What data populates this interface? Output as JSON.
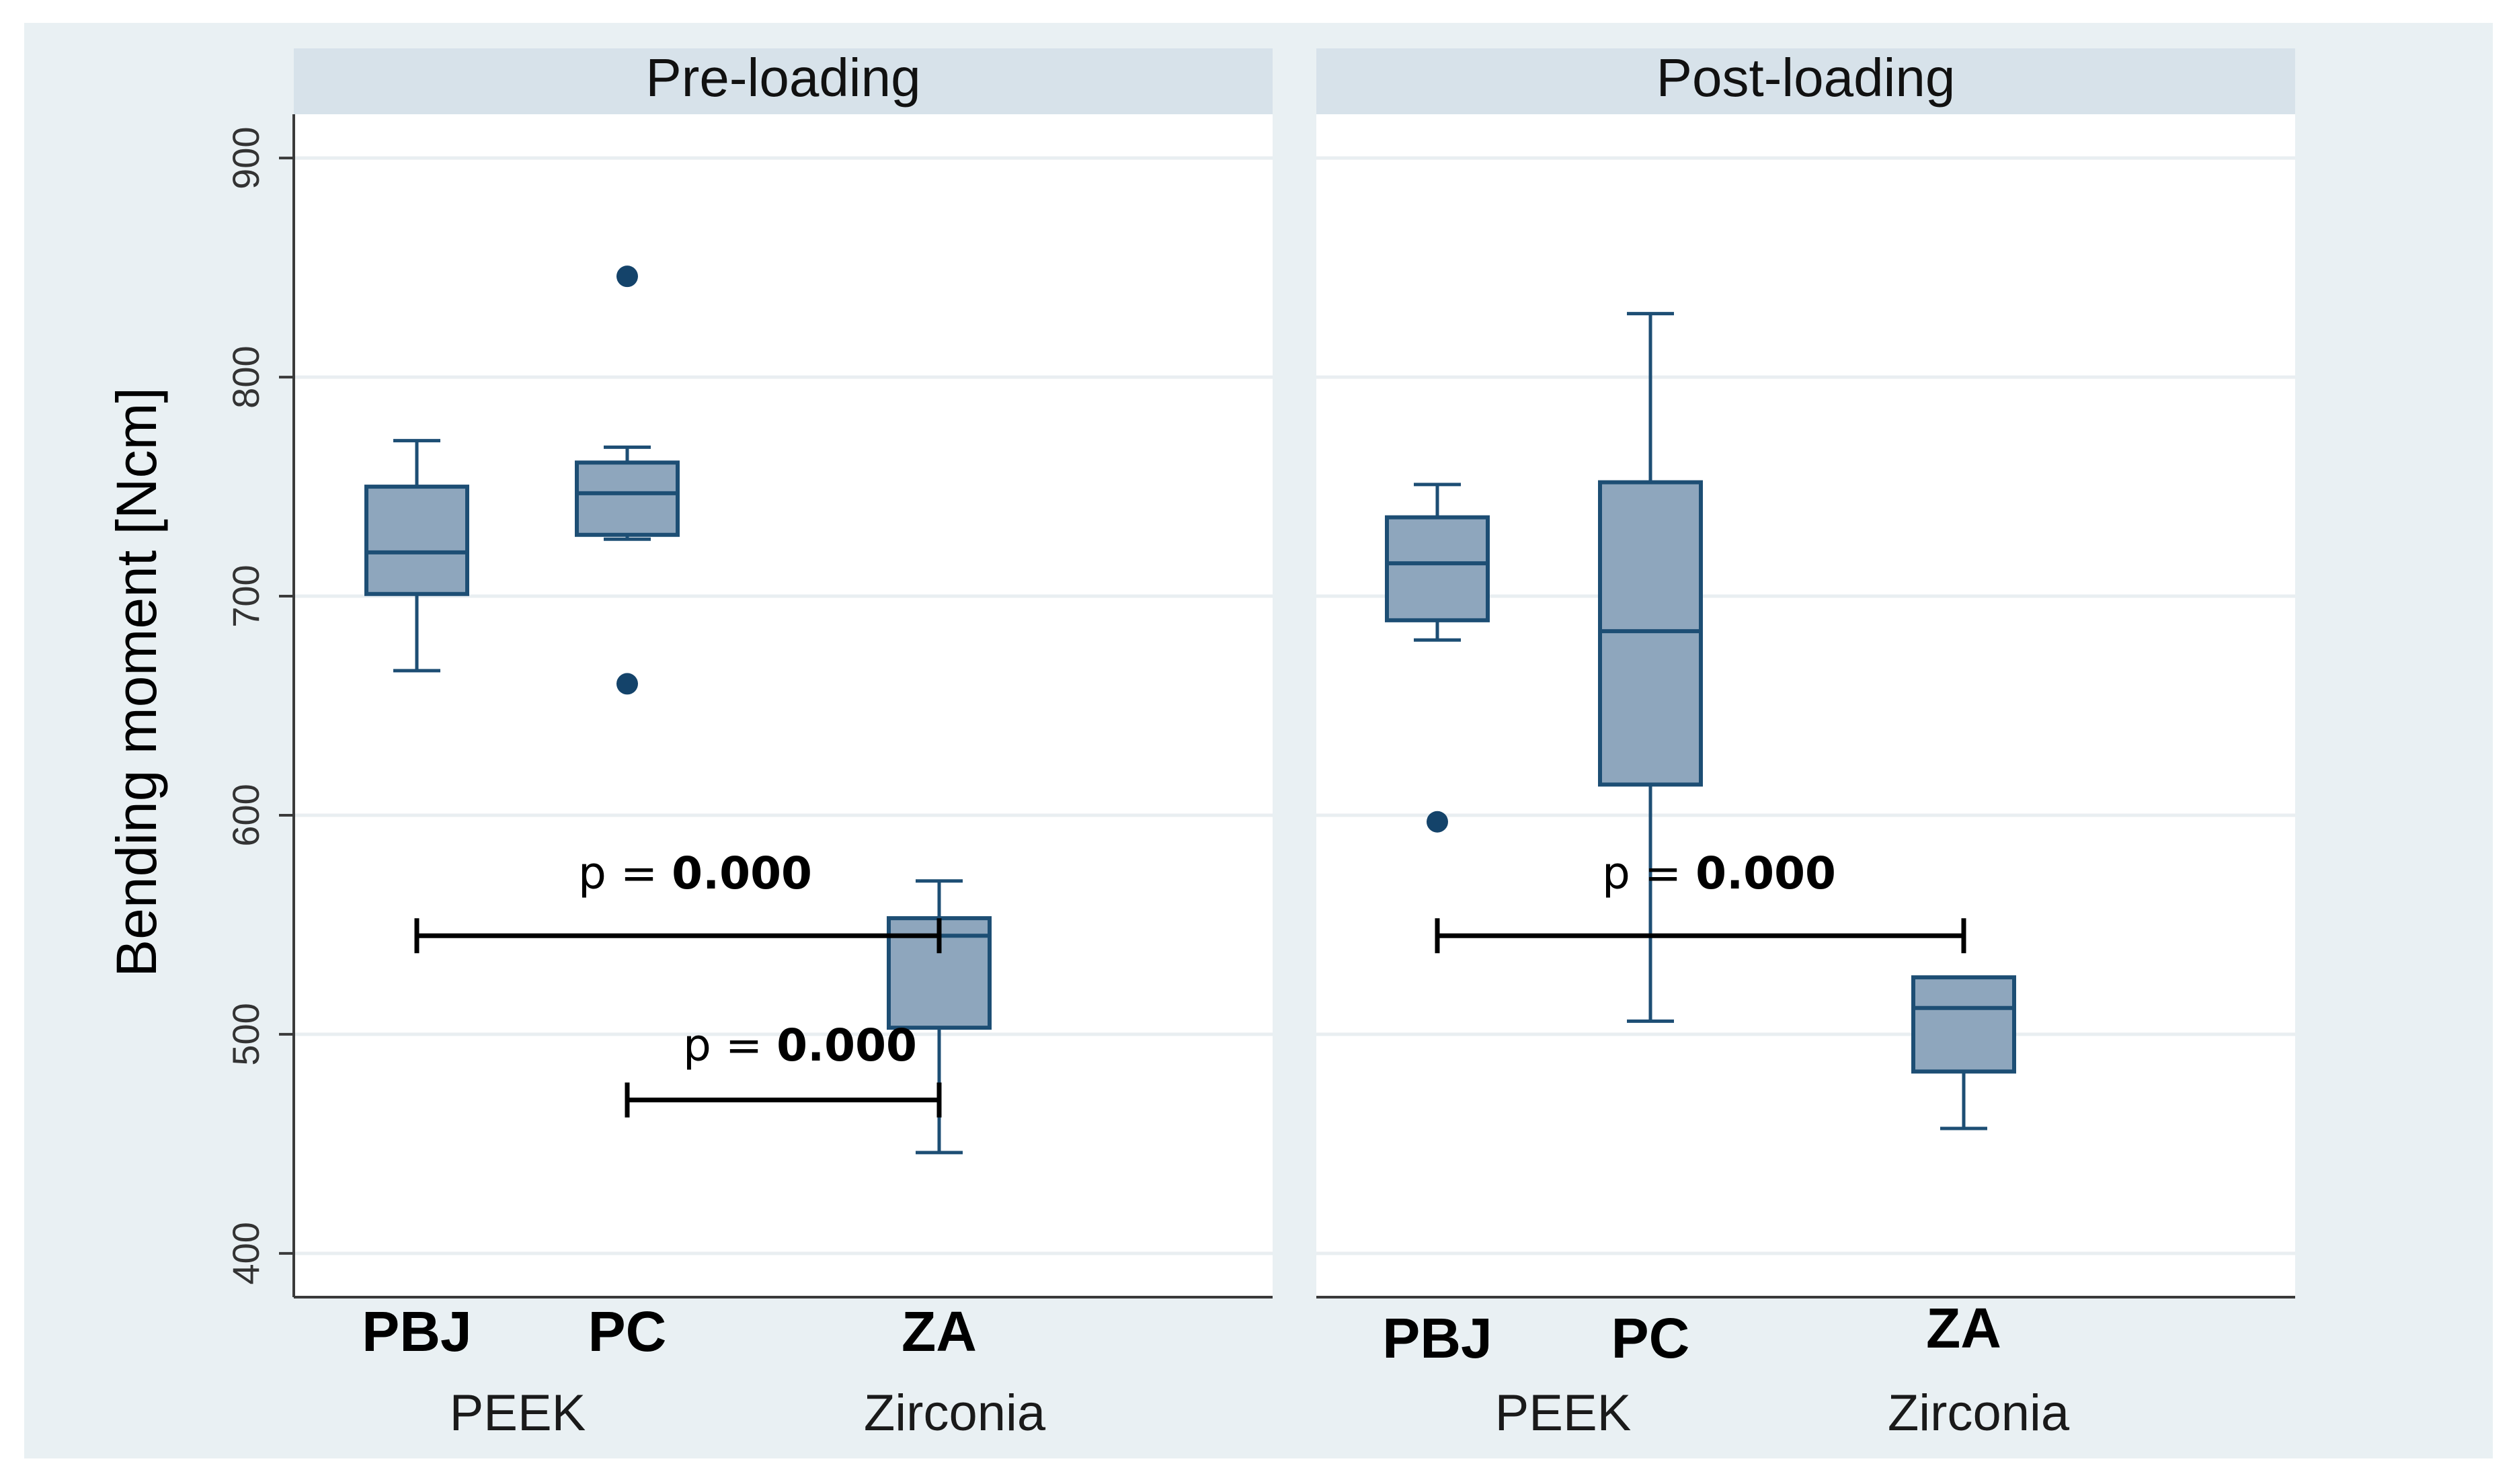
{
  "ylabel": "Bending moment [Ncm]",
  "yticks": [
    400,
    500,
    600,
    700,
    800,
    900
  ],
  "ylim": [
    380,
    920
  ],
  "colors": {
    "outer_bg": "#e9f0f3",
    "plot_bg": "#ffffff",
    "strip_bg": "#d7e2ea",
    "box_fill": "#8ea6bd",
    "box_stroke": "#1d4e74",
    "outlier": "#14436a",
    "grid": "#e9eef1",
    "annotation": "#000000"
  },
  "chart_data": [
    {
      "type": "box",
      "title": "Pre-loading",
      "categories": [
        "PBJ",
        "PC",
        "ZA"
      ],
      "groups": [
        {
          "label": "PEEK",
          "categories": [
            "PBJ",
            "PC"
          ]
        },
        {
          "label": "Zirconia",
          "categories": [
            "ZA"
          ]
        }
      ],
      "boxes": [
        {
          "name": "PBJ",
          "whisker_low": 666,
          "q1": 701,
          "median": 720,
          "q3": 750,
          "whisker_high": 771,
          "outliers": []
        },
        {
          "name": "PC",
          "whisker_low": 726,
          "q1": 728,
          "median": 747,
          "q3": 761,
          "whisker_high": 768,
          "outliers": [
            846,
            660
          ]
        },
        {
          "name": "ZA",
          "whisker_low": 446,
          "q1": 503,
          "median": 545,
          "q3": 553,
          "whisker_high": 570,
          "outliers": []
        }
      ],
      "annotations": [
        {
          "from": "PBJ",
          "to": "ZA",
          "y": 545,
          "p_prefix": "p = ",
          "p_value": "0.000"
        },
        {
          "from": "PC",
          "to": "ZA",
          "y": 470,
          "p_prefix": "p = ",
          "p_value": "0.000"
        }
      ],
      "ylim": [
        380,
        920
      ]
    },
    {
      "type": "box",
      "title": "Post-loading",
      "categories": [
        "PBJ",
        "PC",
        "ZA"
      ],
      "groups": [
        {
          "label": "PEEK",
          "categories": [
            "PBJ",
            "PC"
          ]
        },
        {
          "label": "Zirconia",
          "categories": [
            "ZA"
          ]
        }
      ],
      "boxes": [
        {
          "name": "PBJ",
          "whisker_low": 680,
          "q1": 689,
          "median": 715,
          "q3": 736,
          "whisker_high": 751,
          "outliers": [
            597
          ]
        },
        {
          "name": "PC",
          "whisker_low": 506,
          "q1": 614,
          "median": 684,
          "q3": 752,
          "whisker_high": 829,
          "outliers": []
        },
        {
          "name": "ZA",
          "whisker_low": 457,
          "q1": 483,
          "median": 512,
          "q3": 526,
          "whisker_high": 526,
          "outliers": []
        }
      ],
      "annotations": [
        {
          "from": "PBJ",
          "to": "ZA",
          "y": 545,
          "p_prefix": "p = ",
          "p_value": "0.000"
        }
      ],
      "ylim": [
        380,
        920
      ]
    }
  ]
}
